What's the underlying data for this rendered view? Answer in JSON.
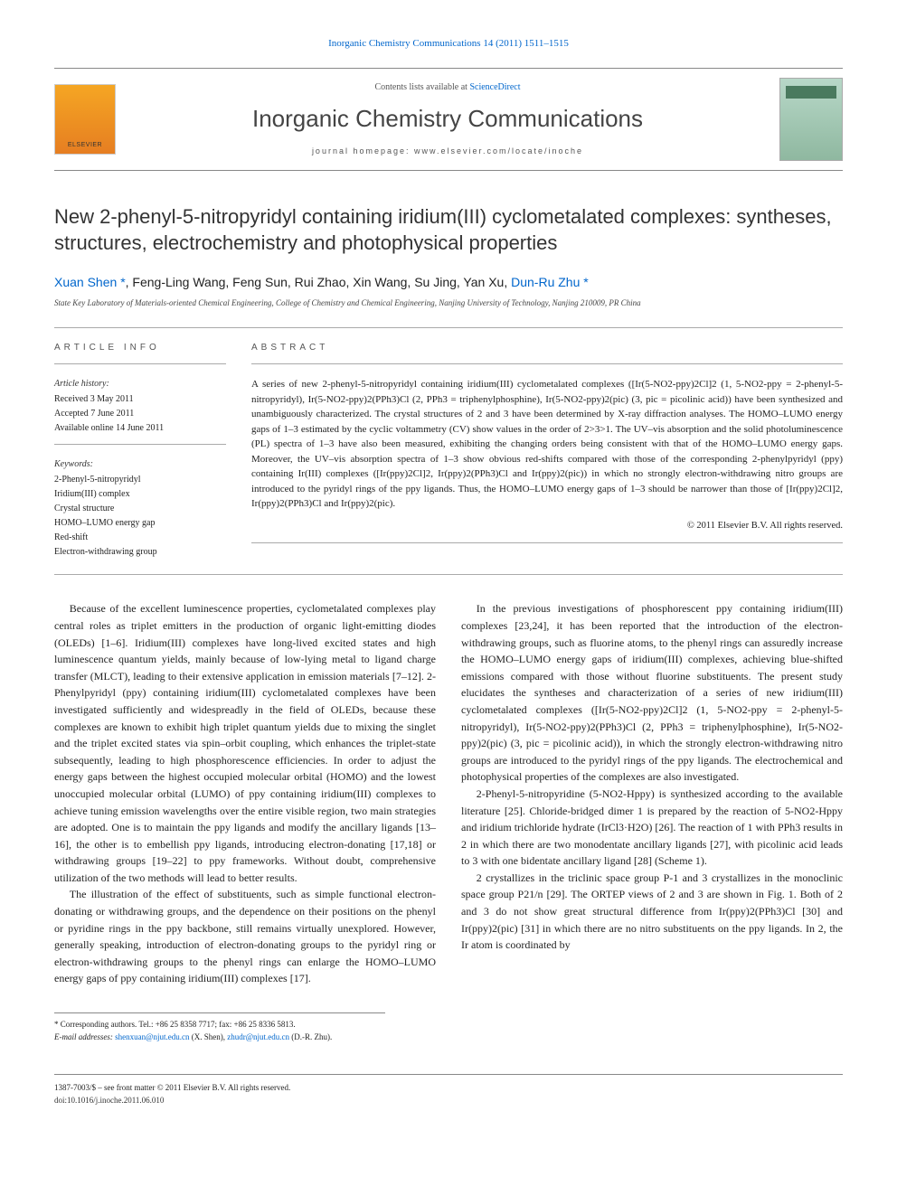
{
  "top_citation": {
    "prefix": "",
    "link_text": "Inorganic Chemistry Communications 14 (2011) 1511–1515"
  },
  "masthead": {
    "contents_prefix": "Contents lists available at ",
    "contents_link": "ScienceDirect",
    "journal": "Inorganic Chemistry Communications",
    "homepage_label": "journal homepage: www.elsevier.com/locate/inoche"
  },
  "title": "New 2-phenyl-5-nitropyridyl containing iridium(III) cyclometalated complexes: syntheses, structures, electrochemistry and photophysical properties",
  "authors_html": "Xuan Shen *, Feng-Ling Wang, Feng Sun, Rui Zhao, Xin Wang, Su Jing, Yan Xu, Dun-Ru Zhu *",
  "affiliation": "State Key Laboratory of Materials-oriented Chemical Engineering, College of Chemistry and Chemical Engineering, Nanjing University of Technology, Nanjing 210009, PR China",
  "article_info_head": "ARTICLE INFO",
  "abstract_head": "ABSTRACT",
  "history": {
    "label": "Article history:",
    "received": "Received 3 May 2011",
    "accepted": "Accepted 7 June 2011",
    "online": "Available online 14 June 2011"
  },
  "keywords": {
    "label": "Keywords:",
    "items": [
      "2-Phenyl-5-nitropyridyl",
      "Iridium(III) complex",
      "Crystal structure",
      "HOMO–LUMO energy gap",
      "Red-shift",
      "Electron-withdrawing group"
    ]
  },
  "abstract": "A series of new 2-phenyl-5-nitropyridyl containing iridium(III) cyclometalated complexes ([Ir(5-NO2-ppy)2Cl]2 (1, 5-NO2-ppy = 2-phenyl-5-nitropyridyl), Ir(5-NO2-ppy)2(PPh3)Cl (2, PPh3 = triphenylphosphine), Ir(5-NO2-ppy)2(pic) (3, pic = picolinic acid)) have been synthesized and unambiguously characterized. The crystal structures of 2 and 3 have been determined by X-ray diffraction analyses. The HOMO–LUMO energy gaps of 1–3 estimated by the cyclic voltammetry (CV) show values in the order of 2>3>1. The UV–vis absorption and the solid photoluminescence (PL) spectra of 1–3 have also been measured, exhibiting the changing orders being consistent with that of the HOMO–LUMO energy gaps. Moreover, the UV–vis absorption spectra of 1–3 show obvious red-shifts compared with those of the corresponding 2-phenylpyridyl (ppy) containing Ir(III) complexes ([Ir(ppy)2Cl]2, Ir(ppy)2(PPh3)Cl and Ir(ppy)2(pic)) in which no strongly electron-withdrawing nitro groups are introduced to the pyridyl rings of the ppy ligands. Thus, the HOMO–LUMO energy gaps of 1–3 should be narrower than those of [Ir(ppy)2Cl]2, Ir(ppy)2(PPh3)Cl and Ir(ppy)2(pic).",
  "copyright": "© 2011 Elsevier B.V. All rights reserved.",
  "body": {
    "p1": "Because of the excellent luminescence properties, cyclometalated complexes play central roles as triplet emitters in the production of organic light-emitting diodes (OLEDs) [1–6]. Iridium(III) complexes have long-lived excited states and high luminescence quantum yields, mainly because of low-lying metal to ligand charge transfer (MLCT), leading to their extensive application in emission materials [7–12]. 2-Phenylpyridyl (ppy) containing iridium(III) cyclometalated complexes have been investigated sufficiently and widespreadly in the field of OLEDs, because these complexes are known to exhibit high triplet quantum yields due to mixing the singlet and the triplet excited states via spin–orbit coupling, which enhances the triplet-state subsequently, leading to high phosphorescence efficiencies. In order to adjust the energy gaps between the highest occupied molecular orbital (HOMO) and the lowest unoccupied molecular orbital (LUMO) of ppy containing iridium(III) complexes to achieve tuning emission wavelengths over the entire visible region, two main strategies are adopted. One is to maintain the ppy ligands and modify the ancillary ligands [13–16], the other is to embellish ppy ligands, introducing electron-donating [17,18] or withdrawing groups [19–22] to ppy frameworks. Without doubt, comprehensive utilization of the two methods will lead to better results.",
    "p2": "The illustration of the effect of substituents, such as simple functional electron-donating or withdrawing groups, and the dependence on their positions on the phenyl or pyridine rings in the ppy backbone, still remains virtually unexplored. However, generally speaking, introduction of electron-donating groups to the pyridyl ring or electron-withdrawing groups to the phenyl rings can enlarge the HOMO–LUMO energy gaps of ppy containing iridium(III) complexes [17].",
    "p3": "In the previous investigations of phosphorescent ppy containing iridium(III) complexes [23,24], it has been reported that the introduction of the electron-withdrawing groups, such as fluorine atoms, to the phenyl rings can assuredly increase the HOMO–LUMO energy gaps of iridium(III) complexes, achieving blue-shifted emissions compared with those without fluorine substituents. The present study elucidates the syntheses and characterization of a series of new iridium(III) cyclometalated complexes ([Ir(5-NO2-ppy)2Cl]2 (1, 5-NO2-ppy = 2-phenyl-5-nitropyridyl), Ir(5-NO2-ppy)2(PPh3)Cl (2, PPh3 = triphenylphosphine), Ir(5-NO2-ppy)2(pic) (3, pic = picolinic acid)), in which the strongly electron-withdrawing nitro groups are introduced to the pyridyl rings of the ppy ligands. The electrochemical and photophysical properties of the complexes are also investigated.",
    "p4": "2-Phenyl-5-nitropyridine (5-NO2-Hppy) is synthesized according to the available literature [25]. Chloride-bridged dimer 1 is prepared by the reaction of 5-NO2-Hppy and iridium trichloride hydrate (IrCl3·H2O) [26]. The reaction of 1 with PPh3 results in 2 in which there are two monodentate ancillary ligands [27], with picolinic acid leads to 3 with one bidentate ancillary ligand [28] (Scheme 1).",
    "p5": "2 crystallizes in the triclinic space group P-1 and 3 crystallizes in the monoclinic space group P21/n [29]. The ORTEP views of 2 and 3 are shown in Fig. 1. Both of 2 and 3 do not show great structural difference from Ir(ppy)2(PPh3)Cl [30] and Ir(ppy)2(pic) [31] in which there are no nitro substituents on the ppy ligands. In 2, the Ir atom is coordinated by"
  },
  "refs": {
    "r1_6": "[1–6]",
    "r7_12": "[7–12]",
    "r13_16": "[13–16]",
    "r17_18": "[17,18]",
    "r19_22": "[19–22]",
    "r17": "[17]",
    "r23_24": "[23,24]",
    "r25": "[25]",
    "r26": "[26]",
    "r27": "[27]",
    "r28": "[28]",
    "r29": "[29]",
    "r30": "[30]",
    "r31": "[31]"
  },
  "footnote": {
    "star": "*",
    "corresp": "Corresponding authors. Tel.: +86 25 8358 7717; fax: +86 25 8336 5813.",
    "email_label": "E-mail addresses:",
    "email1": "shenxuan@njut.edu.cn",
    "email1_who": " (X. Shen), ",
    "email2": "zhudr@njut.edu.cn",
    "email2_who": " (D.-R. Zhu)."
  },
  "footer": {
    "left1": "1387-7003/$ – see front matter © 2011 Elsevier B.V. All rights reserved.",
    "doi": "doi:10.1016/j.inoche.2011.06.010"
  },
  "colors": {
    "link": "#0066cc",
    "rule": "#888888",
    "text": "#222222"
  }
}
